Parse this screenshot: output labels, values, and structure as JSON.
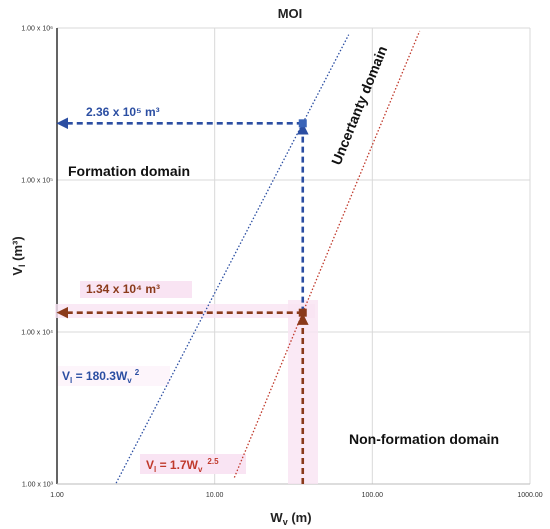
{
  "chart_data": {
    "type": "line",
    "title": "MOI",
    "xlabel_main": "W",
    "xlabel_sub": "v",
    "xlabel_unit": " (m)",
    "ylabel_main": "V",
    "ylabel_sub": "l",
    "ylabel_unit": " (m³)",
    "x_scale": "log",
    "y_scale": "log",
    "xlim": [
      1,
      1000
    ],
    "ylim": [
      1000,
      1000000
    ],
    "grid": true,
    "x_ticks": [
      {
        "value": 1,
        "label": "1.00"
      },
      {
        "value": 10,
        "label": "10.00"
      },
      {
        "value": 100,
        "label": "100.00"
      },
      {
        "value": 1000,
        "label": "1000.00"
      }
    ],
    "y_ticks": [
      {
        "value": 1000,
        "label": "1.00 x 10³"
      },
      {
        "value": 10000,
        "label": "1.00 x 10⁴"
      },
      {
        "value": 100000,
        "label": "1.00 x 10⁵"
      },
      {
        "value": 1000000,
        "label": "1.00 x 10⁶"
      }
    ],
    "series": [
      {
        "coef": 180.3,
        "exp": 2,
        "color": "#2b4ea2",
        "label_main": "V",
        "label_sub": "l",
        "label_mid": " = 180.3W",
        "label_sub2": "v",
        "label_sup": "2"
      },
      {
        "coef": 1.7,
        "exp": 2.5,
        "color": "#c0392b",
        "label_main": "V",
        "label_sub": "l",
        "label_mid": " = 1.7W",
        "label_sub2": "v",
        "label_sup": "2.5"
      }
    ],
    "points": [
      {
        "x": 36.2,
        "y": 236000,
        "color": "#3a64b8"
      },
      {
        "x": 36.2,
        "y": 13400,
        "color": "#8a3a1a"
      }
    ],
    "guides": [
      {
        "x": 36.2,
        "y": 236000,
        "color": "#2b4ea2",
        "text": "2.36 x 10⁵ m³"
      },
      {
        "x": 36.2,
        "y": 13400,
        "color": "#8a3a1a",
        "text": "1.34 x 10⁴ m³"
      }
    ],
    "domains": [
      {
        "text": "Formation domain"
      },
      {
        "text": "Uncertanty domain"
      },
      {
        "text": "Non-formation domain"
      }
    ]
  }
}
